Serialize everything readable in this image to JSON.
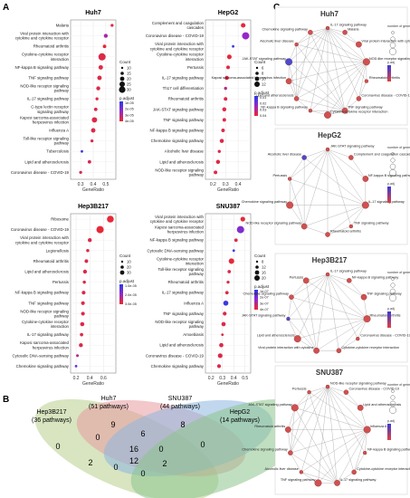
{
  "panels": {
    "A": "A",
    "B": "B",
    "C": "C"
  },
  "chart_data": [
    {
      "type": "scatter",
      "title": "Huh7",
      "xlabel": "GeneRatio",
      "xticks": [
        0.3,
        0.4,
        0.5
      ],
      "xlim": [
        0.22,
        0.58
      ],
      "categories": [
        "Malaria",
        "Viral protein interaction with cytokine and cytokine receptor",
        "Rheumatoid arthritis",
        "Cytokine-cytokine receptor interaction",
        "NF-kappa B signaling pathway",
        "TNF signaling pathway",
        "NOD-like receptor signaling pathway",
        "IL-17 signaling pathway",
        "C-type lectin receptor signaling pathway",
        "Kaposi sarcoma-associated herpesvirus infection",
        "Influenza A",
        "Toll-like receptor signaling pathway",
        "Tuberculosis",
        "Lipid and atherosclerosis",
        "Coronavirus disease - COVID-19"
      ],
      "values": [
        0.55,
        0.5,
        0.49,
        0.47,
        0.46,
        0.45,
        0.44,
        0.43,
        0.42,
        0.41,
        0.4,
        0.39,
        0.31,
        0.37,
        0.3
      ],
      "count": [
        11,
        13,
        12,
        20,
        14,
        14,
        13,
        11,
        12,
        16,
        14,
        11,
        10,
        12,
        11
      ],
      "color_level": [
        0.9,
        0.6,
        0.95,
        0.9,
        0.92,
        0.9,
        0.9,
        0.92,
        0.88,
        0.9,
        0.9,
        0.9,
        0.1,
        0.85,
        0.9
      ],
      "legend_count_title": "Count",
      "legend_count_labels": [
        "10",
        "15",
        "20",
        "25",
        "30"
      ],
      "legend_color_title": "p.adjust",
      "legend_color_labels": [
        "1e-05",
        "2e-05",
        "3e-05",
        "4e-05"
      ]
    },
    {
      "type": "scatter",
      "title": "HepG2",
      "xlabel": "GeneRatio",
      "xticks": [
        0.2,
        0.3,
        0.4
      ],
      "xlim": [
        0.14,
        0.5
      ],
      "categories": [
        "Complement and coagulation cascades",
        "Coronavirus disease - COVID-19",
        "Viral protein interaction with cytokine and cytokine receptor",
        "Cytokine-cytokine receptor interaction",
        "Pertussis",
        "IL-17 signaling pathway",
        "Th17 cell differentiation",
        "Rheumatoid arthritis",
        "JAK-STAT signaling pathway",
        "TNF signaling pathway",
        "NF-kappa B signaling pathway",
        "Chemokine signaling pathway",
        "Alcoholic liver disease",
        "Lipid and atherosclerosis",
        "NOD-like receptor signaling pathway"
      ],
      "values": [
        0.44,
        0.46,
        0.36,
        0.33,
        0.32,
        0.31,
        0.3,
        0.3,
        0.29,
        0.29,
        0.28,
        0.27,
        0.25,
        0.24,
        0.22
      ],
      "count": [
        9,
        14,
        5,
        9,
        7,
        8,
        6,
        7,
        8,
        7,
        7,
        8,
        6,
        8,
        7
      ],
      "color_level": [
        0.95,
        0.5,
        0.1,
        0.95,
        0.92,
        0.9,
        0.7,
        0.9,
        0.9,
        0.9,
        0.9,
        0.9,
        0.9,
        0.9,
        0.9
      ],
      "legend_count_title": "Count",
      "legend_count_labels": [
        "6",
        "8",
        "10",
        "12"
      ],
      "legend_color_title": "p.adjust",
      "legend_color_labels": [
        "0.01",
        "0.02",
        "0.03",
        "0.04"
      ]
    },
    {
      "type": "scatter",
      "title": "Hep3B217",
      "xlabel": "GeneRatio",
      "xticks": [
        0.2,
        0.4,
        0.6
      ],
      "xlim": [
        0.12,
        0.78
      ],
      "categories": [
        "Ribosome",
        "Coronavirus disease - COVID-19",
        "Viral protein interaction with cytokine and cytokine receptor",
        "Legionellosis",
        "Rheumatoid arthritis",
        "Lipid and atherosclerosis",
        "Pertussis",
        "NF-kappa B signaling pathway",
        "TNF signaling pathway",
        "NOD-like receptor signaling pathway",
        "Cytokine-cytokine receptor interaction",
        "IL-17 signaling pathway",
        "Kaposi sarcoma-associated herpesvirus infection",
        "Cytosolic DNA-sensing pathway",
        "Chemokine signaling pathway"
      ],
      "values": [
        0.7,
        0.55,
        0.4,
        0.37,
        0.35,
        0.33,
        0.32,
        0.31,
        0.3,
        0.3,
        0.29,
        0.28,
        0.27,
        0.22,
        0.2
      ],
      "count": [
        28,
        30,
        14,
        10,
        12,
        14,
        10,
        13,
        13,
        13,
        15,
        11,
        14,
        8,
        7
      ],
      "color_level": [
        0.95,
        0.95,
        0.9,
        0.9,
        0.9,
        0.9,
        0.9,
        0.9,
        0.9,
        0.9,
        0.9,
        0.9,
        0.9,
        0.7,
        0.3
      ],
      "legend_count_title": "Count",
      "legend_count_labels": [
        "10",
        "20",
        "30"
      ],
      "legend_color_title": "p.adjust",
      "legend_color_labels": [
        "1.0e-05",
        "2.0e-05",
        "3.0e-05"
      ]
    },
    {
      "type": "scatter",
      "title": "SNU387",
      "xlabel": "GeneRatio",
      "xticks": [
        0.2,
        0.3,
        0.4,
        0.5
      ],
      "xlim": [
        0.15,
        0.55
      ],
      "categories": [
        "Viral protein interaction with cytokine and cytokine receptor",
        "Kaposi sarcoma-associated herpesvirus infection",
        "NF-kappa B signaling pathway",
        "Cytosolic DNA-sensing pathway",
        "Cytokine-cytokine receptor interaction",
        "Toll-like receptor signaling pathway",
        "Rheumatoid arthritis",
        "IL-17 signaling pathway",
        "Influenza A",
        "TNF signaling pathway",
        "NOD-like receptor signaling pathway",
        "Amoebiasis",
        "Lipid and atherosclerosis",
        "Coronavirus disease - COVID-19",
        "Chemokine signaling pathway"
      ],
      "values": [
        0.48,
        0.46,
        0.42,
        0.4,
        0.38,
        0.36,
        0.35,
        0.34,
        0.33,
        0.32,
        0.31,
        0.3,
        0.29,
        0.28,
        0.27
      ],
      "count": [
        12,
        18,
        9,
        7,
        14,
        9,
        8,
        9,
        13,
        10,
        11,
        7,
        11,
        12,
        10
      ],
      "color_level": [
        0.95,
        0.4,
        0.9,
        0.1,
        0.95,
        0.9,
        0.9,
        0.9,
        0.1,
        0.9,
        0.9,
        0.9,
        0.9,
        0.9,
        0.9
      ],
      "legend_count_title": "Count",
      "legend_count_labels": [
        "8",
        "12",
        "16",
        "20"
      ],
      "legend_color_title": "p.adjust",
      "legend_color_labels": [
        "1e-07",
        "2e-07",
        "3e-07",
        "4e-07"
      ]
    }
  ],
  "venn": {
    "sets": [
      {
        "name": "Hep3B217",
        "sub": "(36 pathways)",
        "color": "#b8cf8c"
      },
      {
        "name": "Huh7",
        "sub": "(51 pathways)",
        "color": "#e89aa0"
      },
      {
        "name": "SNU387",
        "sub": "(44 pathways)",
        "color": "#8cb6e0"
      },
      {
        "name": "HepG2",
        "sub": "(14 pathways)",
        "color": "#8cc48c"
      }
    ],
    "numbers": [
      "0",
      "9",
      "6",
      "8",
      "16",
      "0",
      "0",
      "0",
      "2",
      "12",
      "0",
      "2",
      "0",
      "0",
      "7"
    ]
  },
  "networks": [
    {
      "title": "Huh7",
      "nodes": [
        "IL-17 signaling pathway",
        "Malaria",
        "Viral protein interaction with cytokine receptor",
        "NOD-like receptor signaling pathway",
        "Rheumatoid arthritis",
        "Coronavirus disease - COVID-19",
        "TNF signaling pathway",
        "Cytokine-cytokine receptor interaction",
        "NF-kappa B signaling pathway",
        "Lipid and atherosclerosis",
        "Kaposi sarcoma-associated herpesvirus infection",
        "JAK-STAT signaling pathway",
        "Alcoholic liver disease",
        "Chemokine signaling pathway"
      ],
      "legend_size_title": "number of genes",
      "legend_color_title": "p.adj"
    },
    {
      "title": "HepG2",
      "nodes": [
        "JAK-STAT signaling pathway",
        "Complement and coagulation cascades",
        "NF-kappa B signaling pathway",
        "IL-17 signaling pathway",
        "TNF signaling pathway",
        "Rheumatoid arthritis",
        "NOD-like receptor signaling pathway",
        "Chemokine signaling pathway",
        "Pertussis",
        "Alcoholic liver disease"
      ],
      "legend_size_title": "number of genes",
      "legend_color_title": "p.adj"
    },
    {
      "title": "Hep3B217",
      "nodes": [
        "IL-17 signaling pathway",
        "NF-kappa B signaling pathway",
        "TNF signaling pathway",
        "Rheumatoid arthritis",
        "Coronavirus disease - COVID-19",
        "Cytokine-cytokine receptor interaction",
        "Viral protein interaction with cytokine",
        "Lipid and atherosclerosis",
        "JAK-STAT signaling pathway",
        "Chemokine signaling pathway",
        "Pertussis"
      ],
      "legend_size_title": "number of genes",
      "legend_color_title": "p.adj"
    },
    {
      "title": "SNU387",
      "nodes": [
        "NOD-like receptor signaling pathway",
        "Coronavirus disease - COVID-19",
        "Lipid and atherosclerosis",
        "Influenza A",
        "NF-kappa B signaling pathway",
        "Cytokine-cytokine receptor interaction",
        "IL-17 signaling pathway",
        "TNF signaling pathway",
        "Alcoholic liver disease",
        "Chemokine signaling pathway",
        "Rheumatoid arthritis",
        "JAK-STAT signaling pathway",
        "Pertussis"
      ],
      "legend_size_title": "number of genes",
      "legend_color_title": "p.adj"
    }
  ]
}
